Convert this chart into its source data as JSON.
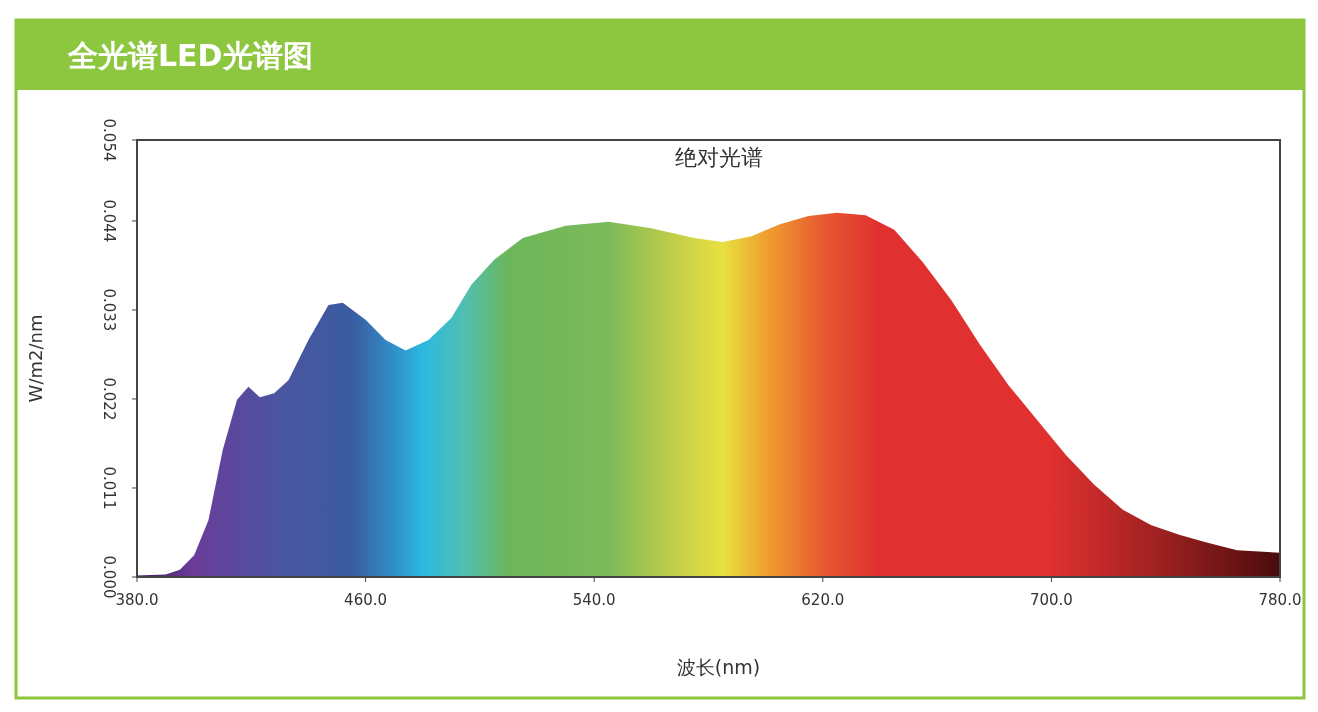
{
  "chart_data": {
    "type": "area",
    "title": "全光谱LED光谱图",
    "subtitle": "绝对光谱",
    "xlabel": "波长(nm)",
    "ylabel": "W/m2/nm",
    "x": [
      380,
      390,
      395,
      400,
      405,
      410,
      415,
      419,
      423,
      428,
      433,
      440,
      447,
      452,
      460,
      467,
      474,
      482,
      490,
      497,
      505,
      515,
      530,
      545,
      560,
      575,
      585,
      595,
      605,
      615,
      625,
      635,
      645,
      655,
      665,
      675,
      685,
      695,
      705,
      715,
      725,
      735,
      745,
      755,
      765,
      780
    ],
    "values": [
      0.0002,
      0.0003,
      0.0009,
      0.0027,
      0.007,
      0.0157,
      0.0219,
      0.0235,
      0.0222,
      0.0227,
      0.0243,
      0.0293,
      0.0336,
      0.0339,
      0.0318,
      0.0293,
      0.028,
      0.0293,
      0.032,
      0.0361,
      0.0392,
      0.0419,
      0.0434,
      0.0439,
      0.0431,
      0.0419,
      0.0414,
      0.0421,
      0.0436,
      0.0446,
      0.045,
      0.0447,
      0.0429,
      0.0389,
      0.0342,
      0.0287,
      0.0237,
      0.0194,
      0.0151,
      0.0114,
      0.0083,
      0.0064,
      0.0052,
      0.0042,
      0.0033,
      0.003
    ],
    "xlim": [
      380,
      780
    ],
    "ylim": [
      0,
      0.054
    ],
    "xticks": [
      {
        "value": 380,
        "label": "380.0"
      },
      {
        "value": 460,
        "label": "460.0"
      },
      {
        "value": 540,
        "label": "540.0"
      },
      {
        "value": 620,
        "label": "620.0"
      },
      {
        "value": 700,
        "label": "700.0"
      },
      {
        "value": 780,
        "label": "780.0"
      }
    ],
    "yticks": [
      {
        "value": 0,
        "label": "0.000"
      },
      {
        "value": 0.011,
        "label": "0.011"
      },
      {
        "value": 0.022,
        "label": "0.022"
      },
      {
        "value": 0.033,
        "label": "0.033"
      },
      {
        "value": 0.044,
        "label": "0.044"
      },
      {
        "value": 0.054,
        "label": "0.054"
      }
    ],
    "grid": false
  }
}
